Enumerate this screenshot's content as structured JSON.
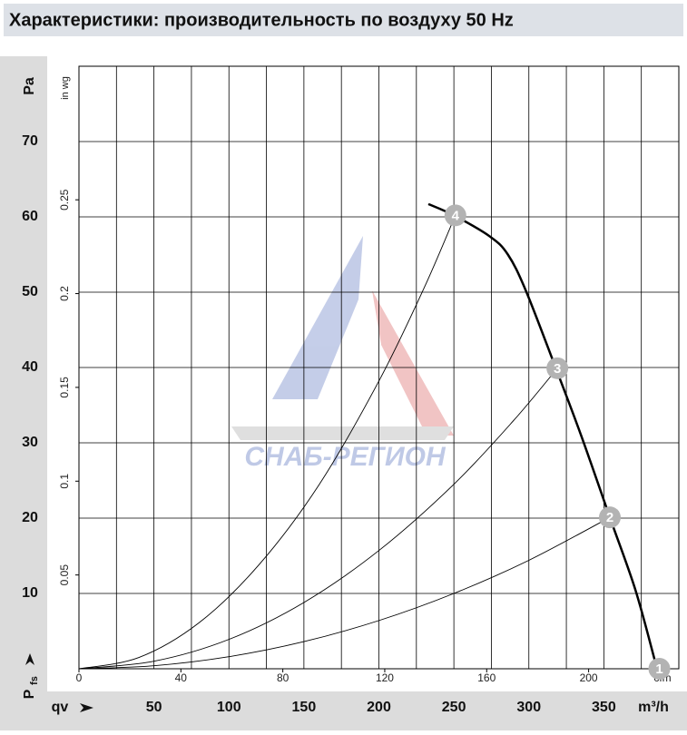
{
  "chart_data": {
    "type": "line",
    "title": "Характеристики: производительность по воздуху 50 Hz",
    "watermark": "СНАБ-РЕГИОН",
    "x_prefix": "qv",
    "x_label": "m³/h",
    "xlim": [
      0,
      400
    ],
    "xticks": [
      50,
      100,
      150,
      200,
      250,
      300,
      350
    ],
    "x_gridlines": [
      25,
      50,
      75,
      100,
      125,
      150,
      175,
      200,
      225,
      250,
      275,
      300,
      325,
      350,
      375
    ],
    "y_label": "Pa",
    "ylim": [
      0,
      80
    ],
    "yticks": [
      10,
      20,
      30,
      40,
      50,
      60,
      70
    ],
    "y_symbol": "P",
    "y_symbol_sub": "fs",
    "x2_label": "cfm",
    "x2lim": [
      0,
      235.4
    ],
    "x2ticks": [
      0,
      40,
      80,
      120,
      160,
      200
    ],
    "y2_label": "in wg",
    "y2lim": [
      0,
      0.3212
    ],
    "y2ticks": [
      0.05,
      0.1,
      0.15,
      0.2,
      0.25
    ],
    "grid": true,
    "series": [
      {
        "color": "#000000",
        "width": 2.5,
        "x": [
          233,
          250,
          274,
          286,
          298,
          318,
          335,
          354,
          371,
          384
        ],
        "values": [
          61.7,
          60.2,
          57.4,
          55.0,
          50.2,
          39.9,
          30.9,
          20.1,
          10.5,
          1.1
        ]
      },
      {
        "color": "#000000",
        "width": 0.9,
        "x": [
          0,
          40,
          80,
          120,
          160,
          200,
          230,
          251
        ],
        "values": [
          0,
          1.5,
          6.1,
          13.8,
          24.4,
          38.2,
          50.5,
          60.2
        ]
      },
      {
        "color": "#000000",
        "width": 0.9,
        "x": [
          0,
          50,
          100,
          150,
          200,
          250,
          290,
          319
        ],
        "values": [
          0,
          1.0,
          3.9,
          8.8,
          15.7,
          24.5,
          33.0,
          39.9
        ]
      },
      {
        "color": "#000000",
        "width": 0.9,
        "x": [
          0,
          50,
          100,
          150,
          200,
          250,
          300,
          354
        ],
        "values": [
          0,
          0.4,
          1.6,
          3.6,
          6.4,
          10.0,
          14.4,
          20.1
        ]
      }
    ],
    "points": {
      "labels": [
        "1",
        "2",
        "3",
        "4"
      ],
      "x": [
        387,
        354,
        319,
        251
      ],
      "values": [
        0,
        20.1,
        39.9,
        60.2
      ],
      "color": "#b3b3b3"
    }
  }
}
